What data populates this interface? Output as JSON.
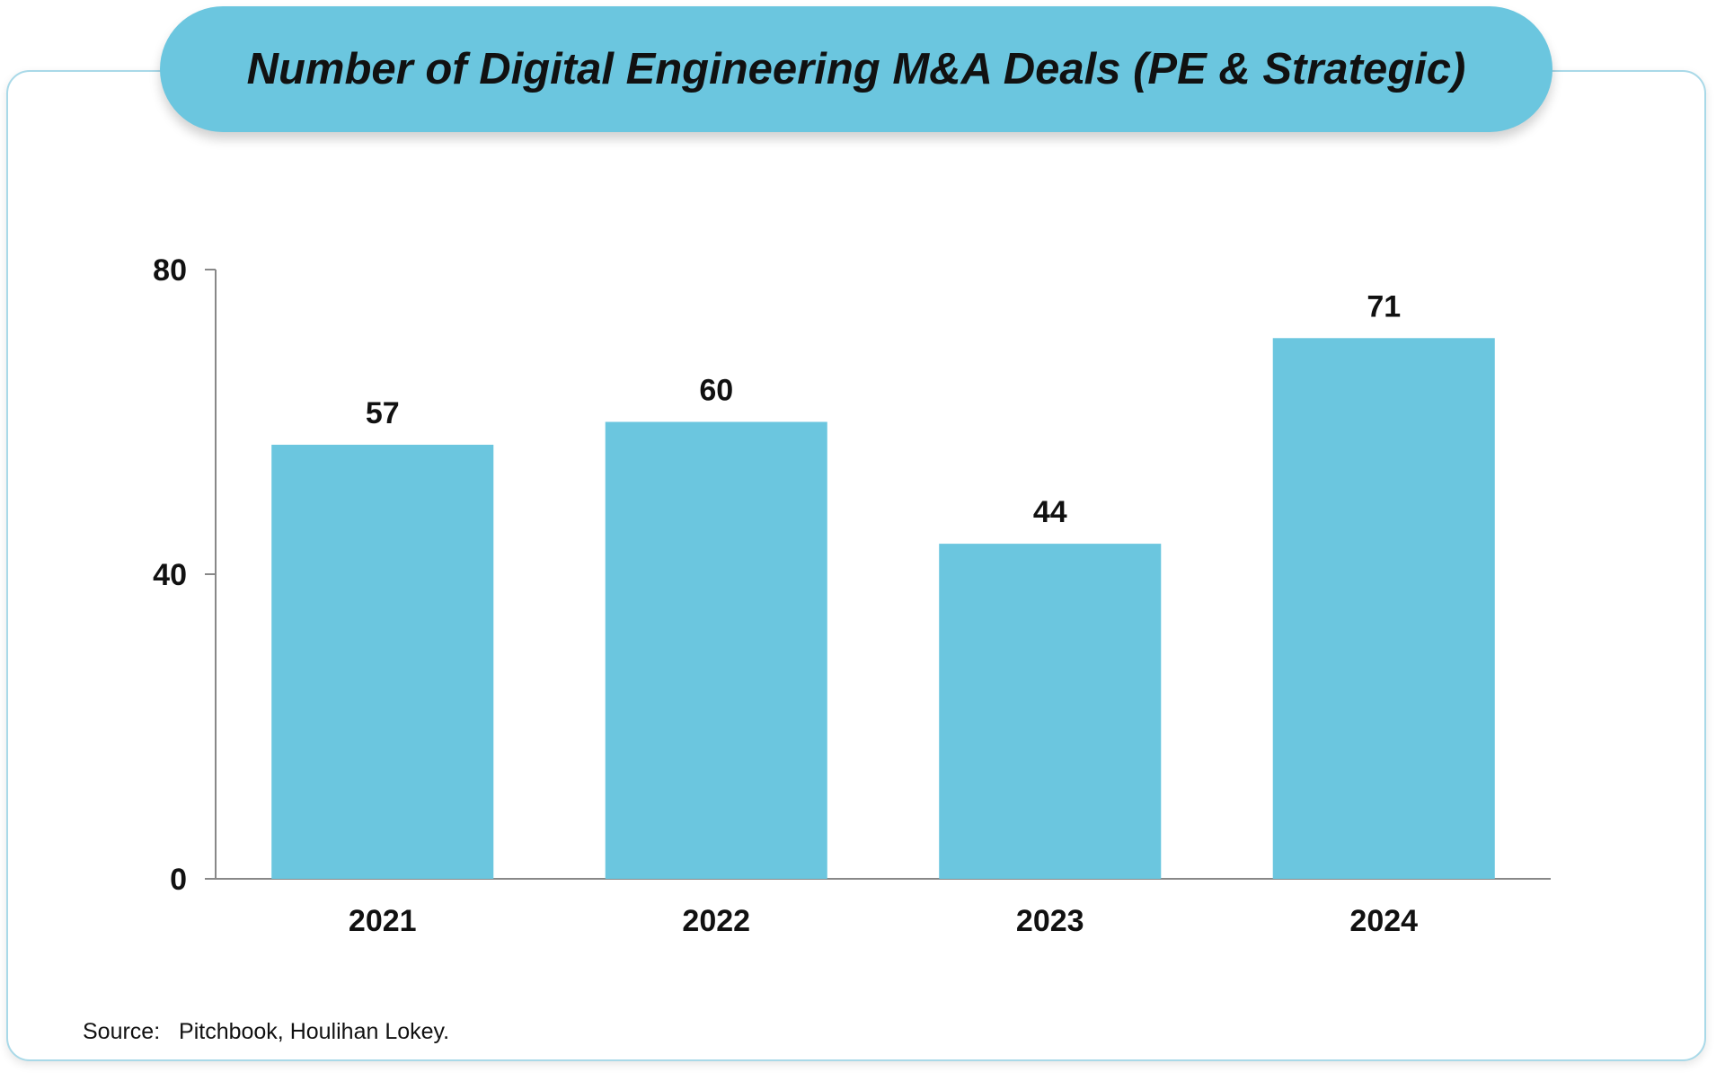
{
  "chart_data": {
    "type": "bar",
    "title": "Number of Digital Engineering M&A Deals (PE & Strategic)",
    "categories": [
      "2021",
      "2022",
      "2023",
      "2024"
    ],
    "values": [
      57,
      60,
      44,
      71
    ],
    "ylim": [
      0,
      80
    ],
    "yticks": [
      0,
      40,
      80
    ],
    "ytick_labels": [
      "0",
      "40",
      "80"
    ],
    "xlabel": "",
    "ylabel": "",
    "bar_color": "#6bc6df",
    "grid": false
  },
  "source": {
    "label": "Source:",
    "text": "Pitchbook, Houlihan Lokey."
  },
  "colors": {
    "accent": "#6bc6df",
    "card_border": "#a9d9e8",
    "axis": "#888888",
    "text": "#111111"
  }
}
